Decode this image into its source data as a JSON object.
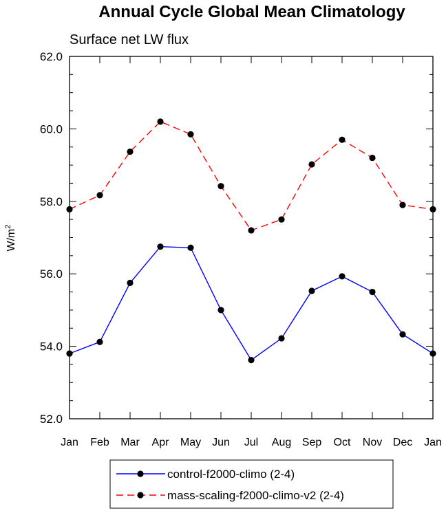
{
  "chart_data": {
    "type": "line",
    "title": "Annual Cycle Global Mean Climatology",
    "subtitle": "Surface net LW flux",
    "ylabel": "W/m",
    "ylabel_sup": "2",
    "xlabel": "",
    "ylim": [
      52.0,
      62.0
    ],
    "yticks": [
      "52.0",
      "54.0",
      "56.0",
      "58.0",
      "60.0",
      "62.0"
    ],
    "categories": [
      "Jan",
      "Feb",
      "Mar",
      "Apr",
      "May",
      "Jun",
      "Jul",
      "Aug",
      "Sep",
      "Oct",
      "Nov",
      "Dec",
      "Jan"
    ],
    "series": [
      {
        "name": "control-f2000-climo (2-4)",
        "color": "#0000ff",
        "dash": "solid",
        "values": [
          53.8,
          54.12,
          55.75,
          56.75,
          56.72,
          55.0,
          53.62,
          54.22,
          55.53,
          55.93,
          55.5,
          54.33,
          53.8
        ]
      },
      {
        "name": "mass-scaling-f2000-climo-v2 (2-4)",
        "color": "#ff0000",
        "dash": "dashed",
        "values": [
          57.78,
          58.17,
          59.37,
          60.2,
          59.85,
          58.42,
          57.2,
          57.5,
          59.02,
          59.7,
          59.2,
          57.9,
          57.78
        ]
      }
    ],
    "legend_position": "bottom"
  }
}
